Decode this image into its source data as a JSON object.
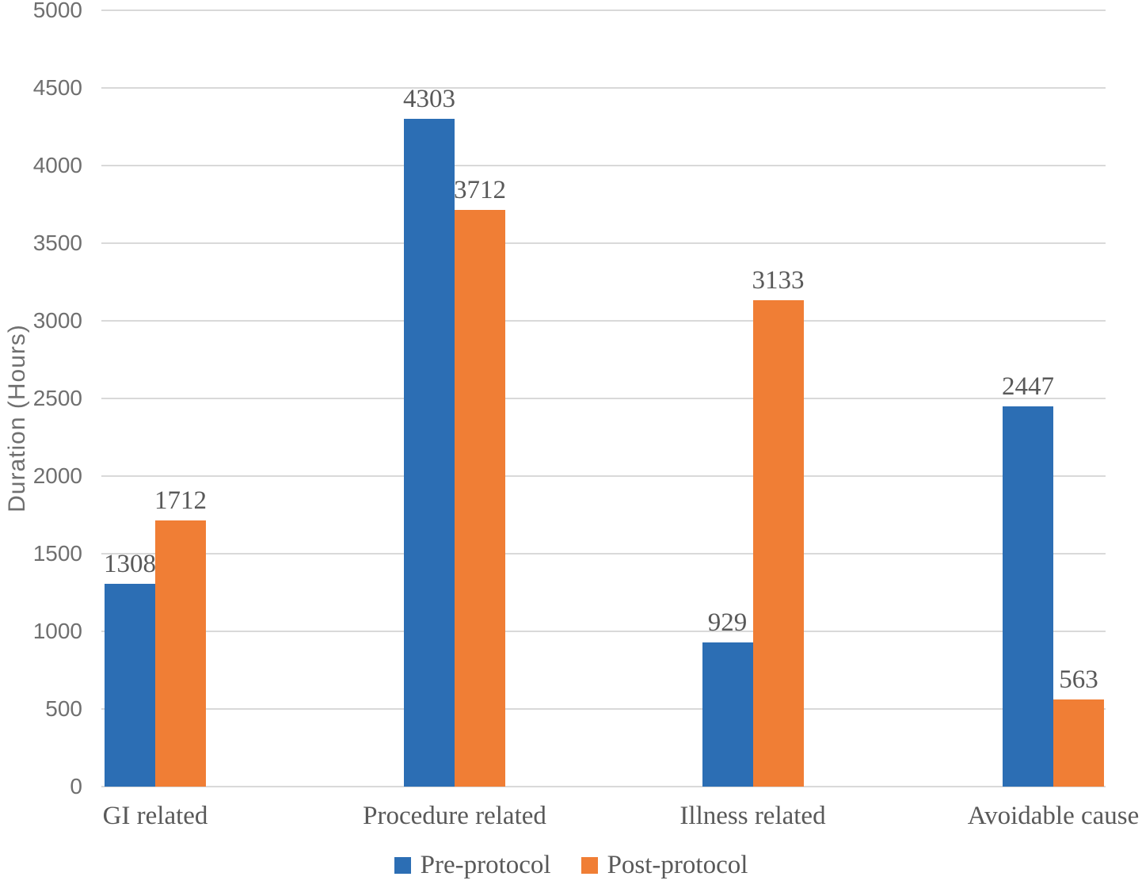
{
  "chart_data": {
    "type": "bar",
    "categories": [
      "GI related",
      "Procedure related",
      "Illness related",
      "Avoidable cause"
    ],
    "series": [
      {
        "name": "Pre-protocol",
        "color": "#2C6EB4",
        "values": [
          1308,
          4303,
          929,
          2447
        ]
      },
      {
        "name": "Post-protocol",
        "color": "#F07E35",
        "values": [
          1712,
          3712,
          3133,
          563
        ]
      }
    ],
    "ylabel": "Duration (Hours)",
    "ylim": [
      0,
      5000
    ],
    "yticks": [
      0,
      500,
      1000,
      1500,
      2000,
      2500,
      3000,
      3500,
      4000,
      4500,
      5000
    ],
    "grid": true,
    "show_bar_value_labels": true,
    "legend_position": "bottom",
    "gridline_color": "#D9D9D9",
    "axis_text_color": "#6F6F6F",
    "label_text_color": "#595959"
  }
}
